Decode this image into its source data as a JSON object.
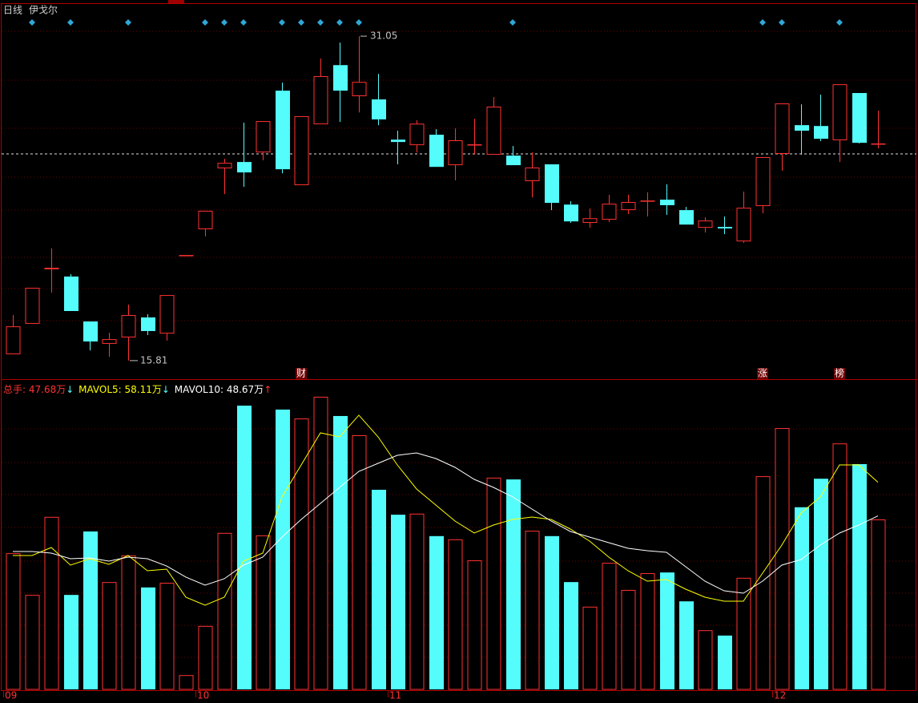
{
  "chart_data": {
    "type": "candlestick",
    "period": "日线",
    "title": "伊戈尔",
    "up_color": "#ff3232",
    "down_color": "#54fcfc",
    "ylim": [
      14.94,
      32.56
    ],
    "last_price_line": 25.52,
    "max_label": 31.05,
    "min_label": 15.81,
    "annotations": [
      "财",
      "涨",
      "榜"
    ],
    "categories": [
      "09",
      null,
      null,
      null,
      null,
      null,
      null,
      null,
      null,
      null,
      "10",
      null,
      null,
      null,
      null,
      null,
      null,
      null,
      null,
      null,
      "11",
      null,
      null,
      null,
      null,
      null,
      null,
      null,
      null,
      null,
      null,
      null,
      null,
      null,
      null,
      null,
      null,
      null,
      null,
      null,
      "12",
      null,
      null,
      null,
      null,
      null
    ],
    "ohlc": [
      [
        16.11,
        17.95,
        16.11,
        17.42
      ],
      [
        17.54,
        19.23,
        17.54,
        19.23
      ],
      [
        20.1,
        21.08,
        19.0,
        20.17
      ],
      [
        19.76,
        19.87,
        18.14,
        18.14
      ],
      [
        17.65,
        17.65,
        16.29,
        16.71
      ],
      [
        16.6,
        17.12,
        15.99,
        16.82
      ],
      [
        16.9,
        18.44,
        15.81,
        17.95
      ],
      [
        17.84,
        17.99,
        17.01,
        17.2
      ],
      [
        17.08,
        18.89,
        16.75,
        18.89
      ],
      [
        20.77,
        20.77,
        20.77,
        20.77
      ],
      [
        21.98,
        22.85,
        21.64,
        22.85
      ],
      [
        24.84,
        25.29,
        23.63,
        25.1
      ],
      [
        25.14,
        26.99,
        23.97,
        24.65
      ],
      [
        25.59,
        27.06,
        25.22,
        27.06
      ],
      [
        28.49,
        28.87,
        24.61,
        24.8
      ],
      [
        24.05,
        27.29,
        24.05,
        27.29
      ],
      [
        26.91,
        30.0,
        26.91,
        29.17
      ],
      [
        29.69,
        30.75,
        27.02,
        28.49
      ],
      [
        28.23,
        31.05,
        27.47,
        28.9
      ],
      [
        28.08,
        29.28,
        26.87,
        27.14
      ],
      [
        26.19,
        26.61,
        25.03,
        26.08
      ],
      [
        25.93,
        27.1,
        25.59,
        26.94
      ],
      [
        26.42,
        26.68,
        24.91,
        24.91
      ],
      [
        24.99,
        26.72,
        24.28,
        26.16
      ],
      [
        25.93,
        27.17,
        25.48,
        25.97
      ],
      [
        25.48,
        28.19,
        25.48,
        27.74
      ],
      [
        25.44,
        25.89,
        24.99,
        24.99
      ],
      [
        24.24,
        25.59,
        23.48,
        24.88
      ],
      [
        25.03,
        25.03,
        22.88,
        23.22
      ],
      [
        23.14,
        23.3,
        22.28,
        22.35
      ],
      [
        22.28,
        22.96,
        22.05,
        22.5
      ],
      [
        22.43,
        23.6,
        22.32,
        23.18
      ],
      [
        22.88,
        23.6,
        22.69,
        23.26
      ],
      [
        23.3,
        23.71,
        22.58,
        23.33
      ],
      [
        23.37,
        24.09,
        22.66,
        23.11
      ],
      [
        22.88,
        23.03,
        22.2,
        22.2
      ],
      [
        22.05,
        22.54,
        21.83,
        22.39
      ],
      [
        22.09,
        22.58,
        21.75,
        22.02
      ],
      [
        21.41,
        23.75,
        21.34,
        22.99
      ],
      [
        23.07,
        25.37,
        22.73,
        25.37
      ],
      [
        25.52,
        27.89,
        24.73,
        27.89
      ],
      [
        26.87,
        27.85,
        25.48,
        26.61
      ],
      [
        26.83,
        28.3,
        26.12,
        26.23
      ],
      [
        26.16,
        28.79,
        25.14,
        28.79
      ],
      [
        28.38,
        28.38,
        26.01,
        26.04
      ],
      [
        25.97,
        27.55,
        25.78,
        26.01
      ]
    ],
    "volume": {
      "ylim": [
        0,
        86.36
      ],
      "values": [
        38.2,
        26.5,
        48.4,
        26.5,
        44.3,
        30.1,
        37.6,
        28.6,
        29.9,
        4.0,
        17.8,
        43.9,
        79.6,
        43.2,
        78.5,
        76.0,
        82.1,
        76.7,
        71.3,
        56.0,
        49.0,
        49.3,
        43.0,
        42.1,
        36.2,
        59.4,
        58.9,
        44.5,
        43.0,
        30.1,
        23.2,
        35.5,
        27.9,
        32.6,
        32.8,
        24.7,
        16.6,
        15.1,
        31.3,
        59.8,
        73.3,
        51.1,
        59.1,
        69.0,
        63.2,
        47.68
      ],
      "series": [
        {
          "name": "MAVOL5",
          "color": "#ffff00",
          "values": [
            37.56,
            37.56,
            39.81,
            34.86,
            36.66,
            35.08,
            37.56,
            33.29,
            33.74,
            25.86,
            23.61,
            25.86,
            35.98,
            38.23,
            53.98,
            62.97,
            71.97,
            70.84,
            76.92,
            70.84,
            62.97,
            56.23,
            51.73,
            47.23,
            43.86,
            46.1,
            47.68,
            48.35,
            47.68,
            44.98,
            41.61,
            37.11,
            33.29,
            30.36,
            30.81,
            28.11,
            25.86,
            24.74,
            24.74,
            32.61,
            40.48,
            49.48,
            53.98,
            62.97,
            62.97,
            58.11
          ]
        },
        {
          "name": "MAVOL10",
          "color": "#ffffff",
          "values": [
            38.68,
            38.68,
            38.23,
            36.66,
            36.88,
            35.98,
            37.11,
            36.66,
            34.63,
            31.49,
            29.24,
            31.04,
            34.86,
            37.11,
            42.73,
            47.68,
            52.18,
            56.67,
            61.17,
            63.42,
            65.67,
            66.35,
            64.77,
            62.3,
            58.92,
            56.67,
            53.98,
            50.6,
            47.23,
            44.31,
            42.73,
            41.16,
            39.58,
            38.91,
            38.46,
            34.41,
            30.36,
            27.66,
            26.99,
            30.36,
            34.86,
            36.43,
            40.48,
            43.86,
            46.1,
            48.67
          ]
        }
      ]
    },
    "legend": [
      {
        "text": "总手: 47.68万",
        "arrow": "↓",
        "color": "#ff3232",
        "arrow_color": "#54fcfc"
      },
      {
        "text": "MAVOL5: 58.11万",
        "arrow": "↓",
        "color": "#ffff00",
        "arrow_color": "#54fcfc"
      },
      {
        "text": "MAVOL10: 48.67万",
        "arrow": "↑",
        "color": "#ffffff",
        "arrow_color": "#ff3232"
      }
    ]
  }
}
